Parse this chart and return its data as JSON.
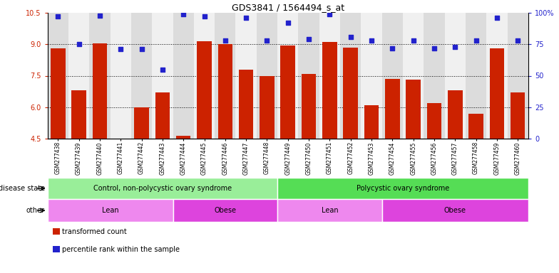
{
  "title": "GDS3841 / 1564494_s_at",
  "samples": [
    "GSM277438",
    "GSM277439",
    "GSM277440",
    "GSM277441",
    "GSM277442",
    "GSM277443",
    "GSM277444",
    "GSM277445",
    "GSM277446",
    "GSM277447",
    "GSM277448",
    "GSM277449",
    "GSM277450",
    "GSM277451",
    "GSM277452",
    "GSM277453",
    "GSM277454",
    "GSM277455",
    "GSM277456",
    "GSM277457",
    "GSM277458",
    "GSM277459",
    "GSM277460"
  ],
  "bar_values": [
    8.8,
    6.8,
    9.05,
    4.5,
    6.0,
    6.7,
    4.65,
    9.15,
    9.0,
    7.8,
    7.5,
    8.95,
    7.6,
    9.1,
    8.85,
    6.1,
    7.35,
    7.3,
    6.2,
    6.8,
    5.7,
    8.8,
    6.7
  ],
  "percentile_values_pct": [
    97,
    75,
    98,
    71,
    71,
    55,
    99,
    97,
    78,
    96,
    78,
    92,
    79,
    99,
    81,
    78,
    72,
    78,
    72,
    73,
    78,
    96,
    78
  ],
  "bar_color": "#CC2200",
  "dot_color": "#2222CC",
  "ylim_left": [
    4.5,
    10.5
  ],
  "yticks_left": [
    4.5,
    6.0,
    7.5,
    9.0,
    10.5
  ],
  "right_axis_ticks_pct": [
    0,
    25,
    50,
    75,
    100
  ],
  "right_axis_labels": [
    "0",
    "25",
    "50",
    "75",
    "100%"
  ],
  "groups_disease": [
    {
      "label": "Control, non-polycystic ovary syndrome",
      "start": 0,
      "end": 11,
      "color": "#99EE99"
    },
    {
      "label": "Polycystic ovary syndrome",
      "start": 11,
      "end": 23,
      "color": "#55DD55"
    }
  ],
  "groups_other": [
    {
      "label": "Lean",
      "start": 0,
      "end": 6,
      "color": "#EE88EE"
    },
    {
      "label": "Obese",
      "start": 6,
      "end": 11,
      "color": "#DD44DD"
    },
    {
      "label": "Lean",
      "start": 11,
      "end": 16,
      "color": "#EE88EE"
    },
    {
      "label": "Obese",
      "start": 16,
      "end": 23,
      "color": "#DD44DD"
    }
  ],
  "legend_items": [
    {
      "label": "transformed count",
      "color": "#CC2200"
    },
    {
      "label": "percentile rank within the sample",
      "color": "#2222CC"
    }
  ],
  "bg_color_even": "#DCDCDC",
  "bg_color_odd": "#F0F0F0"
}
